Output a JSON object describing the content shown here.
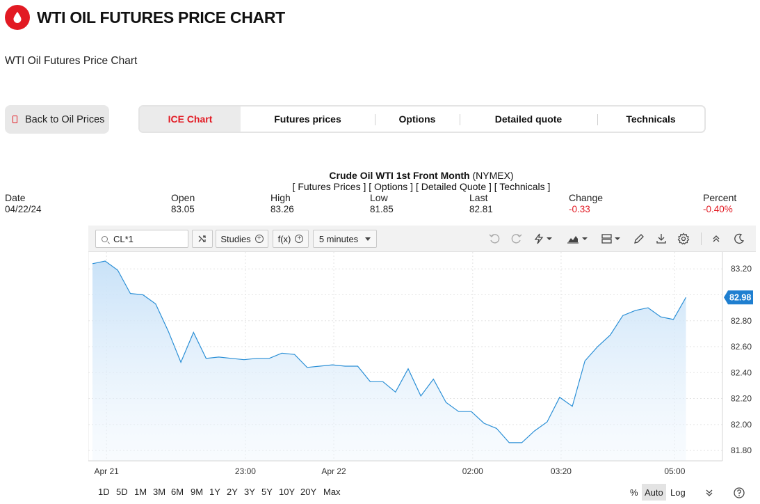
{
  "page": {
    "title": "WTI OIL FUTURES PRICE CHART",
    "subtitle": "WTI Oil Futures Price Chart",
    "back_button": "Back to Oil Prices"
  },
  "tabs": [
    {
      "label": "ICE Chart",
      "active": true
    },
    {
      "label": "Futures prices"
    },
    {
      "label": "Options"
    },
    {
      "label": "Detailed quote"
    },
    {
      "label": "Technicals"
    }
  ],
  "quote": {
    "name": "Crude Oil WTI 1st Front Month",
    "exchange": "(NYMEX)",
    "links": "[ Futures Prices ] [ Options ] [ Detailed Quote ] [ Technicals ]",
    "stats": [
      {
        "label": "Date",
        "value": "04/22/24"
      },
      {
        "label": "Open",
        "value": "83.05"
      },
      {
        "label": "High",
        "value": "83.26"
      },
      {
        "label": "Low",
        "value": "81.85"
      },
      {
        "label": "Last",
        "value": "82.81"
      },
      {
        "label": "Change",
        "value": "-0.33",
        "negative": true
      },
      {
        "label": "Percent",
        "value": "-0.40%",
        "negative": true
      }
    ]
  },
  "toolbar": {
    "symbol": "CL*1",
    "studies_label": "Studies",
    "fx_label": "f(x)",
    "interval_label": "5 minutes",
    "icons": [
      "undo-icon",
      "redo-icon",
      "lightning-icon",
      "area-chart-icon",
      "layout-icon",
      "pencil-icon",
      "download-icon",
      "gear-icon",
      "collapse-icon",
      "moon-icon"
    ]
  },
  "colors": {
    "brand_red": "#e21a23",
    "line_blue": "#2a8fd6",
    "area_top": "#c9e2f8",
    "badge_blue": "#1f7fd0"
  },
  "chart_data": {
    "type": "area",
    "ylim": [
      81.72,
      83.33
    ],
    "y_ticks": [
      "83.20",
      "83.00",
      "82.80",
      "82.60",
      "82.40",
      "82.20",
      "82.00",
      "81.80"
    ],
    "y_tick_values": [
      83.2,
      83.0,
      82.8,
      82.6,
      82.4,
      82.2,
      82.0,
      81.8
    ],
    "x_tick_labels": [
      "Apr 21",
      "23:00",
      "Apr 22",
      "02:00",
      "03:20",
      "05:00"
    ],
    "x_tick_index": [
      1,
      12,
      19,
      30,
      37,
      46
    ],
    "last_price_label": "82.98",
    "last_price": 82.98,
    "values": [
      83.24,
      83.26,
      83.19,
      83.01,
      83.0,
      82.93,
      82.72,
      82.48,
      82.71,
      82.51,
      82.52,
      82.51,
      82.5,
      82.51,
      82.51,
      82.55,
      82.54,
      82.44,
      82.45,
      82.46,
      82.45,
      82.45,
      82.33,
      82.33,
      82.25,
      82.43,
      82.22,
      82.35,
      82.17,
      82.1,
      82.1,
      82.01,
      81.97,
      81.86,
      81.86,
      81.95,
      82.02,
      82.21,
      82.14,
      82.49,
      82.6,
      82.69,
      82.84,
      82.88,
      82.9,
      82.83,
      82.81,
      82.98
    ]
  },
  "bottom": {
    "ranges": [
      "1D",
      "5D",
      "1M",
      "3M",
      "6M",
      "9M",
      "1Y",
      "2Y",
      "3Y",
      "5Y",
      "10Y",
      "20Y",
      "Max"
    ],
    "scale": [
      {
        "label": "%"
      },
      {
        "label": "Auto",
        "active": true
      },
      {
        "label": "Log"
      }
    ]
  }
}
